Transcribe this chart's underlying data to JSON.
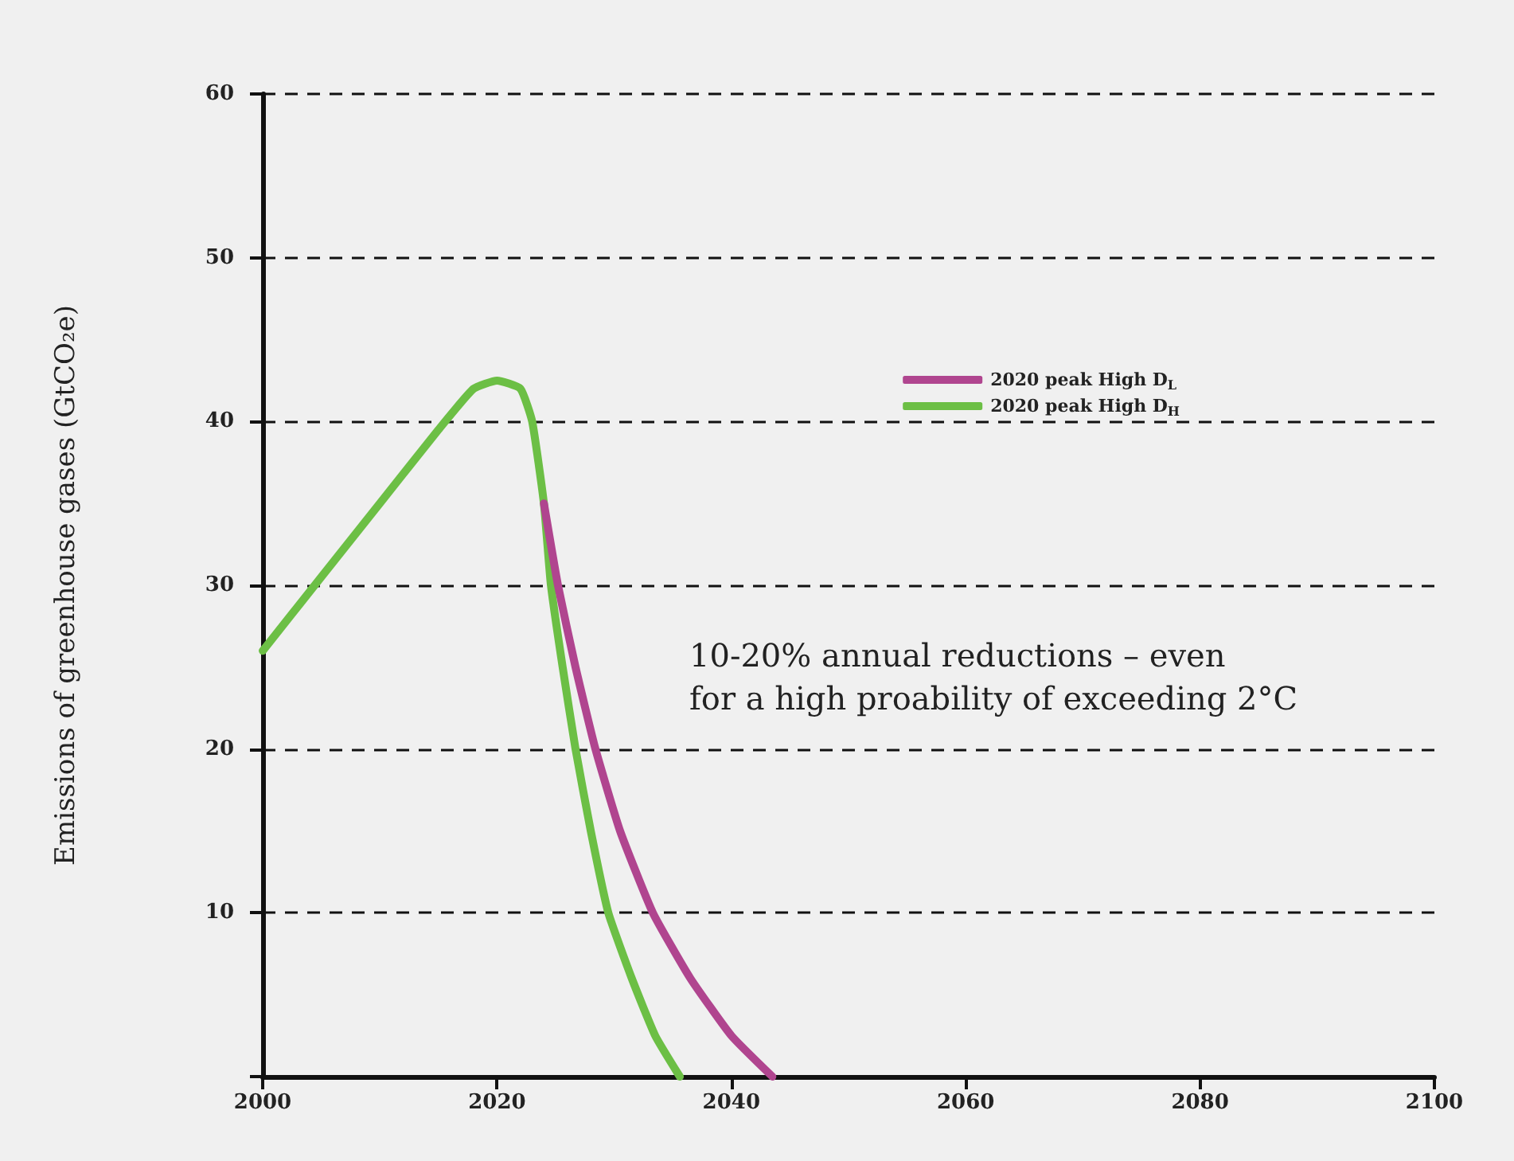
{
  "chart_data": {
    "type": "line",
    "ylabel": "Emissions of greenhouse gases (GtCO₂e)",
    "annotations": [
      "10-20% annual reductions – even\nfor a high proability of exceeding 2°C"
    ],
    "series": [
      {
        "name": "2020 peak High D$_{L}$",
        "color": "#b0458f",
        "x": [
          2024,
          2025.2,
          2026.7,
          2028.4,
          2030.5,
          2033.3,
          2036.5,
          2040,
          2043.5
        ],
        "values": [
          35,
          30,
          25,
          20,
          15,
          10,
          6,
          2.5,
          0
        ]
      },
      {
        "name": "2020 peak High D$_{H}$",
        "color": "#6cbf45",
        "x": [
          2000,
          2005,
          2010,
          2015,
          2018,
          2020,
          2022,
          2023,
          2024,
          2024.6,
          2025.6,
          2026.7,
          2028,
          2029.5,
          2031.5,
          2033.5,
          2035.6
        ],
        "values": [
          26,
          30.5,
          35,
          39.5,
          42,
          42.5,
          42,
          40,
          35,
          30,
          25,
          20,
          15,
          10,
          6,
          2.5,
          0
        ]
      }
    ],
    "xlim": [
      2000,
      2100
    ],
    "xticks": [
      2000,
      2020,
      2040,
      2060,
      2080,
      2100
    ],
    "ylim": [
      0,
      60
    ],
    "yticks": [
      {
        "value": 0,
        "label": null
      },
      10,
      20,
      30,
      40,
      50,
      60
    ],
    "grid": "y",
    "legend": "top right",
    "marker": "none",
    "line_style": "solid"
  }
}
